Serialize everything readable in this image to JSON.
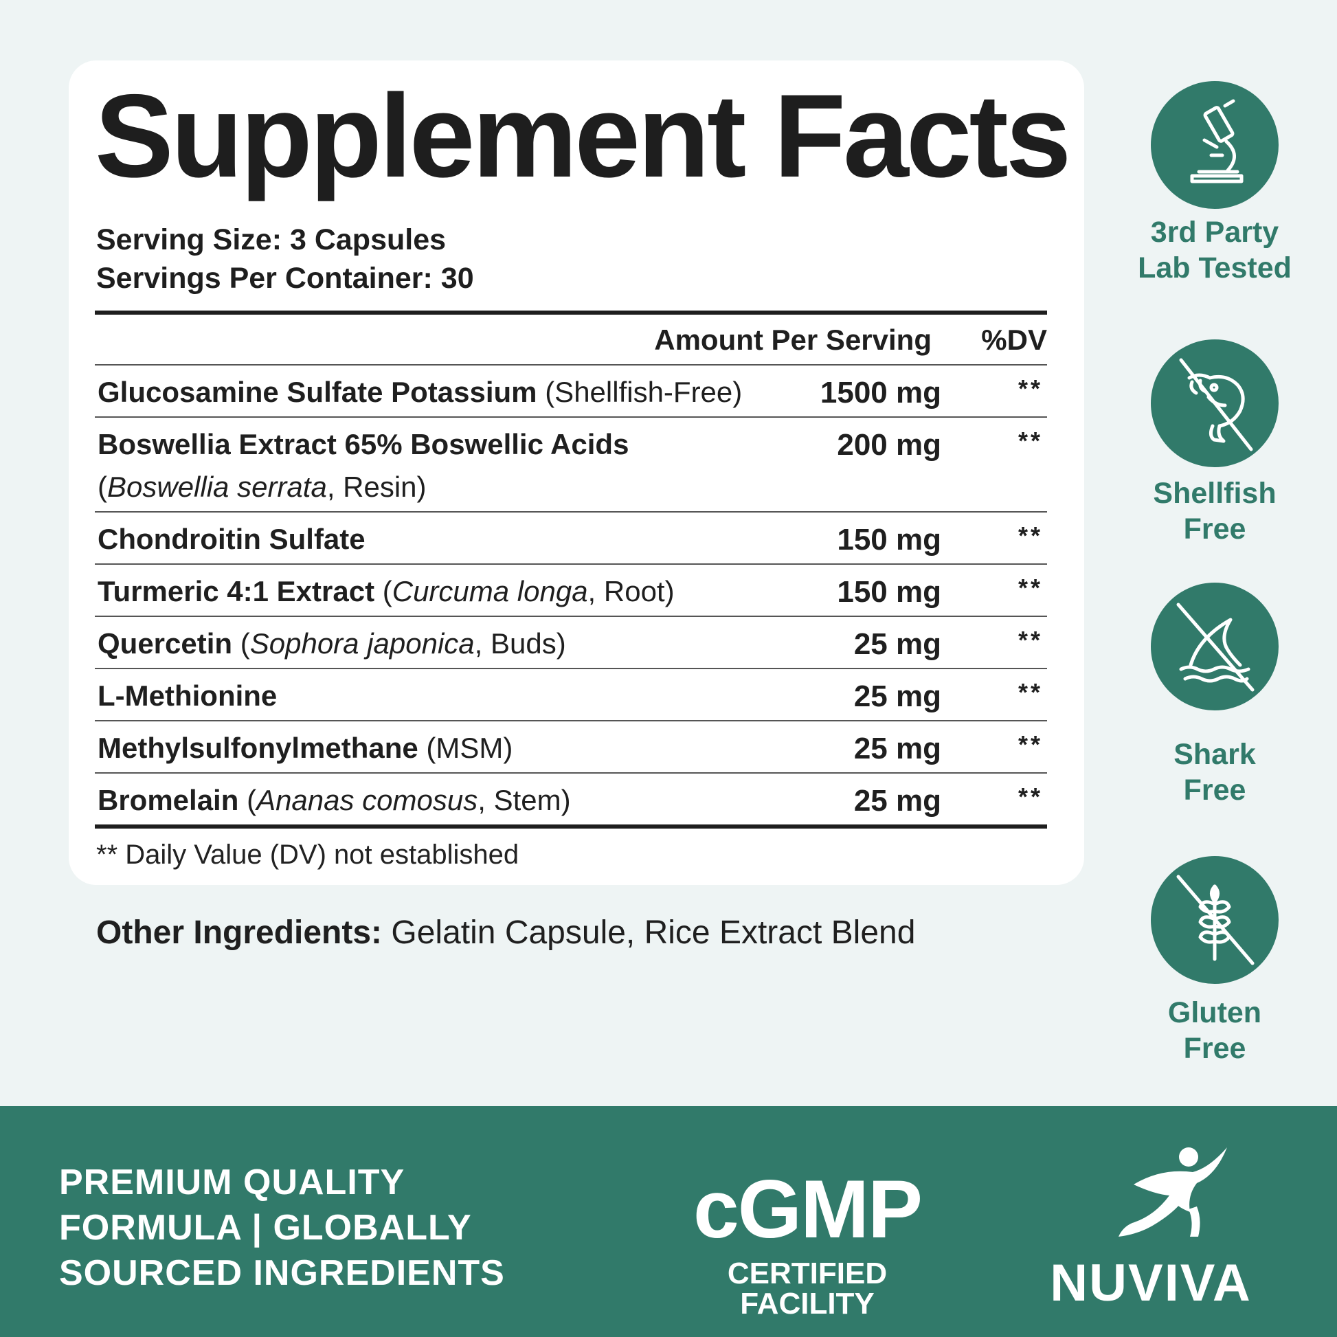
{
  "title": "Supplement Facts",
  "serving_size": "Serving Size: 3 Capsules",
  "servings_per_container": "Servings Per Container: 30",
  "table": {
    "header_amount": "Amount Per Serving",
    "header_dv": "%DV",
    "rows": [
      {
        "name": "Glucosamine Sulfate Potassium",
        "detail": "(Shellfish-Free)",
        "amount": "1500 mg",
        "dv": "**"
      },
      {
        "name": "Boswellia Extract 65% Boswellic Acids",
        "detail_open": "(",
        "detail_italic": "Boswellia serrata",
        "detail_close": ", Resin)",
        "amount": "200 mg",
        "dv": "**"
      },
      {
        "name": "Chondroitin Sulfate",
        "amount": "150 mg",
        "dv": "**"
      },
      {
        "name": "Turmeric 4:1 Extract",
        "detail_open": "(",
        "detail_italic": "Curcuma longa",
        "detail_close": ", Root)",
        "amount": "150 mg",
        "dv": "**"
      },
      {
        "name": "Quercetin",
        "detail_open": "(",
        "detail_italic": "Sophora japonica",
        "detail_close": ", Buds)",
        "amount": "25 mg",
        "dv": "**"
      },
      {
        "name": "L-Methionine",
        "amount": "25 mg",
        "dv": "**"
      },
      {
        "name": "Methylsulfonylmethane",
        "detail": "(MSM)",
        "amount": "25 mg",
        "dv": "**"
      },
      {
        "name": "Bromelain",
        "detail_open": "(",
        "detail_italic": "Ananas comosus",
        "detail_close": ", Stem)",
        "amount": "25 mg",
        "dv": "**"
      }
    ]
  },
  "footnote": "** Daily Value (DV) not established",
  "other_ingredients": {
    "label": "Other Ingredients:",
    "value": "Gelatin Capsule, Rice Extract Blend"
  },
  "badges": [
    {
      "icon": "microscope-icon",
      "line1": "3rd Party",
      "line2": "Lab Tested"
    },
    {
      "icon": "no-shellfish-icon",
      "line1": "Shellfish",
      "line2": "Free"
    },
    {
      "icon": "no-shark-icon",
      "line1": "Shark",
      "line2": "Free"
    },
    {
      "icon": "no-gluten-icon",
      "line1": "Gluten",
      "line2": "Free"
    }
  ],
  "footer": {
    "tagline_1": "PREMIUM QUALITY",
    "tagline_2": "FORMULA | GLOBALLY",
    "tagline_3": "SOURCED INGREDIENTS",
    "cgmp": "cGMP",
    "cgmp_sub": "CERTIFIED FACILITY",
    "brand": "NUVIVA"
  },
  "colors": {
    "brand_green": "#317a6a",
    "text_dark": "#1e1e1e",
    "background": "#eef4f4"
  }
}
